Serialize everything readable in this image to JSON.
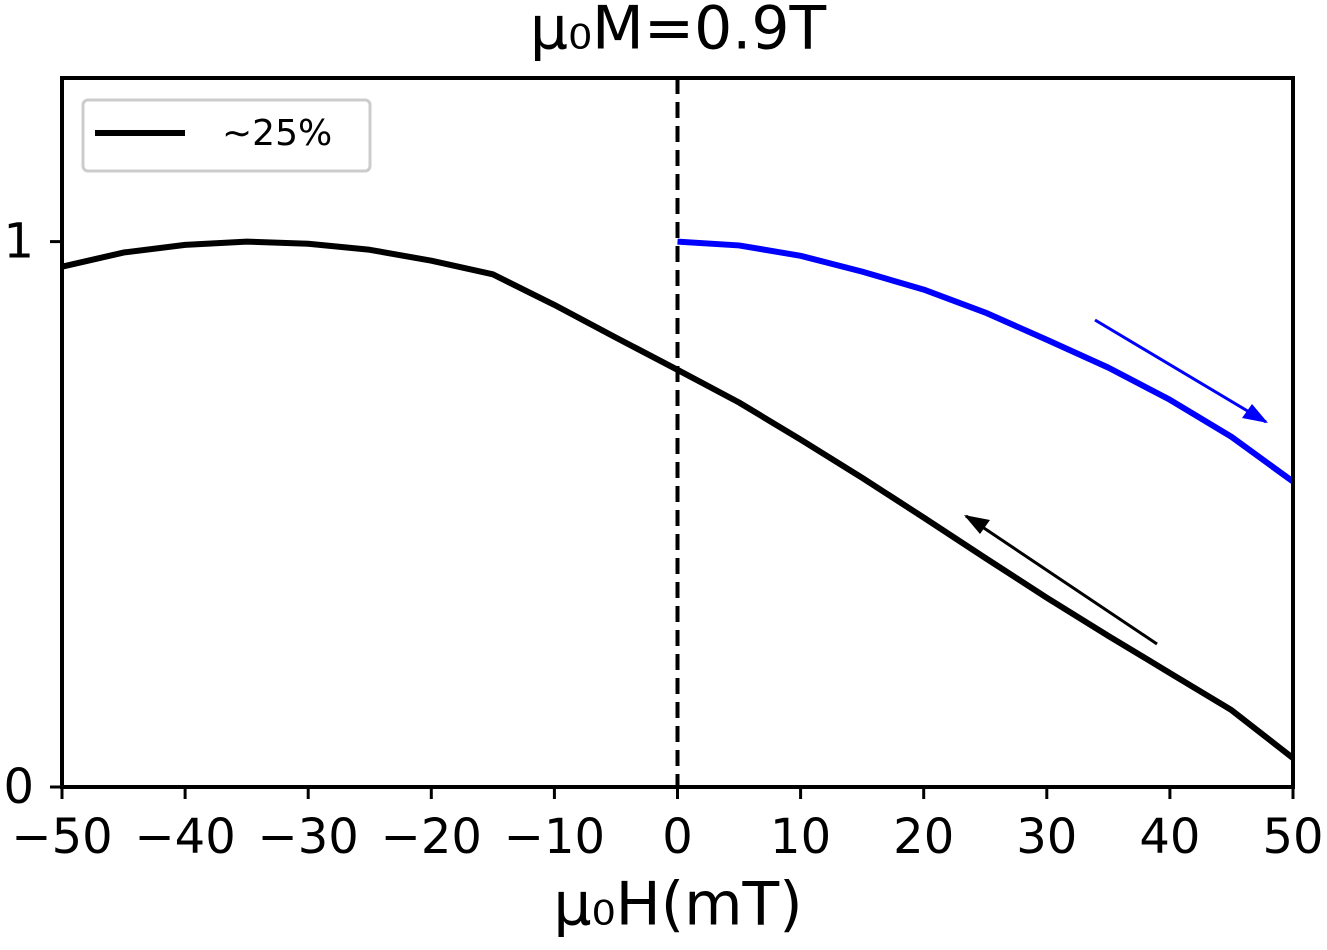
{
  "chart_data": {
    "type": "line",
    "title": "μ₀M=0.9T",
    "x_label": "μ₀H(mT)",
    "series": [
      {
        "name": "∼25%",
        "color": "#000000",
        "x": [
          -50,
          -45,
          -40,
          -35,
          -30,
          -25,
          -20,
          -15,
          -10,
          -5,
          0,
          5,
          10,
          15,
          20,
          25,
          30,
          35,
          40,
          45,
          50
        ],
        "values": [
          0.954,
          0.98,
          0.994,
          1.0,
          0.996,
          0.985,
          0.965,
          0.94,
          0.884,
          0.824,
          0.765,
          0.705,
          0.637,
          0.567,
          0.494,
          0.42,
          0.347,
          0.277,
          0.209,
          0.141,
          0.053
        ]
      },
      {
        "color": "#0000ff",
        "x": [
          0,
          5,
          10,
          15,
          20,
          25,
          30,
          35,
          40,
          45,
          50
        ],
        "values": [
          1.0,
          0.993,
          0.974,
          0.945,
          0.912,
          0.87,
          0.82,
          0.769,
          0.71,
          0.642,
          0.56
        ]
      }
    ],
    "vline": 0,
    "xlim": [
      -50,
      50
    ],
    "xticks": [
      {
        "value": -50,
        "label": "−50"
      },
      {
        "value": -40,
        "label": "−40"
      },
      {
        "value": -30,
        "label": "−30"
      },
      {
        "value": -20,
        "label": "−20"
      },
      {
        "value": -10,
        "label": "−10"
      },
      0,
      10,
      20,
      30,
      40,
      50
    ],
    "ylim": [
      0,
      1.3
    ],
    "yticks": [
      0,
      1
    ],
    "legend": "upper left"
  }
}
